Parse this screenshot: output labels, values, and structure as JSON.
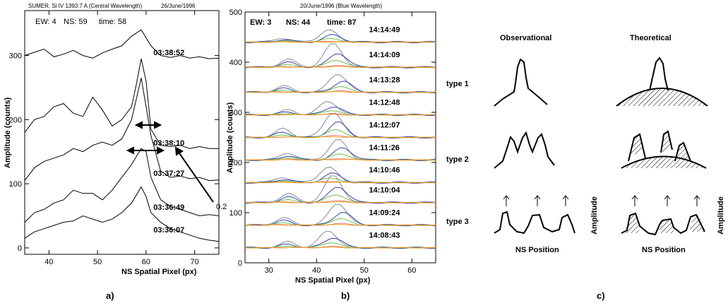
{
  "panel_a": {
    "header_left": "SUMER, Si IV 1393.7 A   (Central Wavelength)",
    "header_right": "26/June/1996",
    "info": {
      "ew": "EW: 4",
      "ns": "NS: 59",
      "time": "time: 58"
    },
    "xlabel": "NS  Spatial Pixel (px)",
    "ylabel": "Amplitude   (counts)",
    "annotation": "0.2",
    "caption": "a)"
  },
  "panel_b": {
    "header": "20/June/1996   (Blue Wavelength)",
    "info": {
      "ew": "EW: 3",
      "ns": "NS: 44",
      "time": "time: 87"
    },
    "xlabel": "NS  Spatial Pixel (px)",
    "ylabel": "Amplitude   (counts)",
    "caption": "b)"
  },
  "panel_c": {
    "col_obs": "Observational",
    "col_theo": "Theoretical",
    "rows": [
      "type  1",
      "type  2",
      "type  3"
    ],
    "xlabel": "NS  Position",
    "ylabel": "Amplitude",
    "caption": "c)"
  },
  "chart_data": [
    {
      "type": "line",
      "xlabel": "NS  Spatial Pixel (px)",
      "ylabel": "Amplitude   (counts)",
      "xlim": [
        35,
        75
      ],
      "ylim": [
        -10,
        370
      ],
      "xticks": [
        40,
        50,
        60,
        70
      ],
      "yticks": [
        0,
        100,
        200,
        300
      ],
      "series": [
        {
          "name": "03:38:52",
          "x": [
            35,
            37,
            39,
            41,
            43,
            45,
            47,
            49,
            51,
            53,
            55,
            57,
            59,
            61,
            63,
            65,
            67,
            69,
            71,
            73,
            75
          ],
          "values": [
            300,
            305,
            310,
            298,
            302,
            308,
            300,
            296,
            304,
            310,
            315,
            330,
            340,
            315,
            300,
            297,
            300,
            296,
            298,
            295,
            296
          ]
        },
        {
          "name": "03:38:10",
          "x": [
            35,
            37,
            39,
            41,
            43,
            45,
            47,
            49,
            51,
            53,
            55,
            57,
            58,
            59,
            60,
            61,
            63,
            65,
            67,
            69,
            71,
            73,
            75
          ],
          "values": [
            180,
            200,
            205,
            220,
            225,
            210,
            205,
            235,
            215,
            190,
            200,
            220,
            255,
            295,
            260,
            185,
            160,
            158,
            160,
            155,
            158,
            155,
            155
          ]
        },
        {
          "name": "03:37:27",
          "x": [
            35,
            37,
            39,
            41,
            43,
            45,
            47,
            49,
            51,
            53,
            55,
            57,
            59,
            61,
            63,
            65,
            67,
            69,
            71,
            73,
            75
          ],
          "values": [
            105,
            125,
            135,
            140,
            145,
            155,
            150,
            160,
            165,
            160,
            170,
            200,
            265,
            175,
            120,
            110,
            112,
            108,
            110,
            105,
            106
          ]
        },
        {
          "name": "03:36:49",
          "x": [
            35,
            37,
            39,
            41,
            43,
            45,
            47,
            49,
            51,
            53,
            55,
            57,
            59,
            60,
            61,
            63,
            65,
            67,
            69,
            71,
            73,
            75
          ],
          "values": [
            40,
            55,
            60,
            70,
            75,
            90,
            85,
            85,
            75,
            90,
            110,
            130,
            155,
            150,
            110,
            75,
            65,
            60,
            55,
            50,
            52,
            50
          ]
        },
        {
          "name": "03:36:07",
          "x": [
            35,
            37,
            39,
            41,
            43,
            45,
            47,
            49,
            51,
            53,
            55,
            57,
            59,
            60,
            61,
            63,
            65,
            67,
            69,
            71,
            73,
            75
          ],
          "values": [
            15,
            25,
            30,
            35,
            40,
            42,
            50,
            45,
            40,
            45,
            55,
            70,
            95,
            80,
            55,
            40,
            30,
            25,
            20,
            15,
            12,
            10
          ]
        }
      ]
    },
    {
      "type": "line",
      "xlabel": "NS  Spatial Pixel (px)",
      "ylabel": "Amplitude   (counts)",
      "xlim": [
        25,
        65
      ],
      "ylim": [
        0,
        500
      ],
      "xticks": [
        30,
        40,
        50,
        60
      ],
      "yticks": [
        0,
        100,
        200,
        300,
        400,
        500
      ],
      "labels": [
        "14:14:49",
        "14:14:09",
        "14:13:28",
        "14:12:48",
        "14:12:07",
        "14:11:26",
        "14:10:46",
        "14:10:04",
        "14:09:24",
        "14:08:43"
      ],
      "offsets": [
        440,
        390,
        340,
        295,
        250,
        205,
        160,
        120,
        75,
        30
      ],
      "series": [
        {
          "name": "",
          "color": "#8a8a96",
          "peak_x": 43.5,
          "peak_height": 40,
          "x": [
            25,
            29,
            33,
            37,
            41,
            45,
            49,
            53,
            57,
            61,
            65
          ],
          "values": [
            3,
            5,
            9,
            6,
            20,
            40,
            12,
            5,
            4,
            3,
            2
          ]
        },
        {
          "name": "",
          "color": "#3344aa",
          "peak_x": 44.5,
          "peak_height": 24,
          "x": [
            25,
            29,
            33,
            37,
            41,
            45,
            49,
            53,
            57,
            61,
            65
          ],
          "values": [
            2,
            4,
            8,
            5,
            14,
            24,
            10,
            4,
            3,
            2,
            2
          ]
        },
        {
          "name": "",
          "color": "#6cc04a",
          "peak_x": 44,
          "peak_height": 12,
          "x": [
            25,
            29,
            33,
            37,
            41,
            45,
            49,
            53,
            57,
            61,
            65
          ],
          "values": [
            1,
            2,
            4,
            3,
            7,
            12,
            5,
            2,
            2,
            1,
            1
          ]
        },
        {
          "name": "",
          "color": "#e87a7a",
          "peak_x": 44,
          "peak_height": 3,
          "x": [
            25,
            29,
            33,
            37,
            41,
            45,
            49,
            53,
            57,
            61,
            65
          ],
          "values": [
            0,
            1,
            1,
            1,
            2,
            3,
            1,
            1,
            0,
            0,
            0
          ]
        },
        {
          "name": "",
          "color": "#f0a020",
          "peak_x": 44,
          "peak_height": 1,
          "x": [
            25,
            29,
            33,
            37,
            41,
            45,
            49,
            53,
            57,
            61,
            65
          ],
          "values": [
            -1,
            -1,
            0,
            0,
            1,
            1,
            0,
            0,
            -1,
            -1,
            -1
          ]
        }
      ]
    }
  ],
  "colors": {
    "axis": "#000000",
    "sketch": "#000000"
  }
}
